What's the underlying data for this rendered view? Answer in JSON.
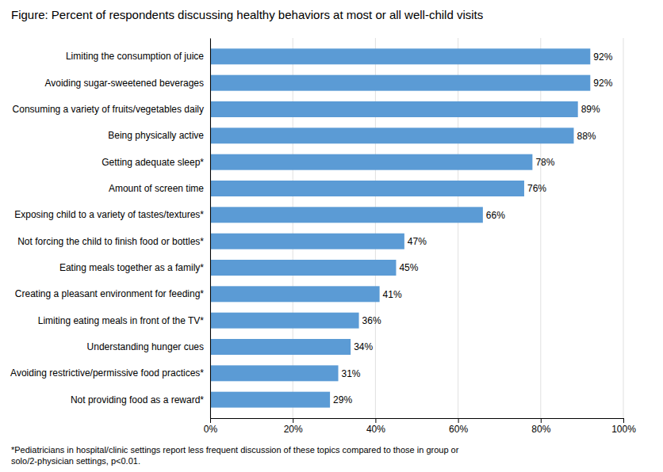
{
  "chart_data": {
    "type": "bar",
    "orientation": "horizontal",
    "title": "Figure: Percent of respondents discussing healthy behaviors at most or all well-child visits",
    "categories": [
      "Not providing food as a reward*",
      "Avoiding restrictive/permissive food practices*",
      "Understanding hunger cues",
      "Limiting eating meals in front of the TV*",
      "Creating a pleasant environment for feeding*",
      "Eating meals together as a family*",
      "Not forcing the child to finish food or bottles*",
      "Exposing child to a variety of tastes/textures*",
      "Amount of screen time",
      "Getting adequate sleep*",
      "Being physically active",
      "Consuming a variety of fruits/vegetables daily",
      "Avoiding sugar-sweetened beverages",
      "Limiting the consumption of juice"
    ],
    "values": [
      29,
      31,
      34,
      36,
      41,
      45,
      47,
      66,
      76,
      78,
      88,
      89,
      92,
      92
    ],
    "value_labels": [
      "29%",
      "31%",
      "34%",
      "36%",
      "41%",
      "45%",
      "47%",
      "66%",
      "76%",
      "78%",
      "88%",
      "89%",
      "92%",
      "92%"
    ],
    "data_labels": true,
    "color": "#5B9BD5",
    "xlim": [
      0,
      100
    ],
    "xticks": [
      {
        "value": 0,
        "label": "0%"
      },
      {
        "value": 20,
        "label": "20%"
      },
      {
        "value": 40,
        "label": "40%"
      },
      {
        "value": 60,
        "label": "60%"
      },
      {
        "value": 80,
        "label": "80%"
      },
      {
        "value": 100,
        "label": "100%"
      }
    ],
    "grid": true,
    "annotations": [
      "*Pediatricians in hospital/clinic settings report less frequent discussion of these topics compared to those in group or\nsolo/2-physician settings, p<0.01."
    ]
  }
}
